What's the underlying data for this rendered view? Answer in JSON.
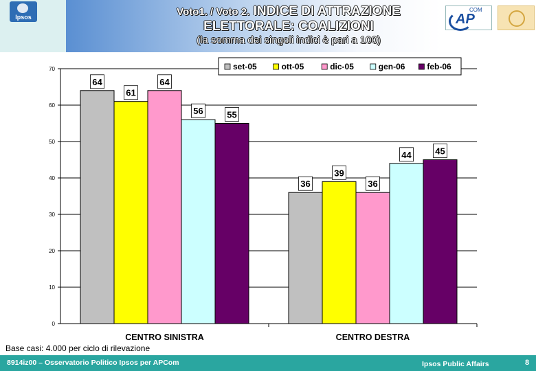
{
  "header": {
    "title_prefix": "Voto1. / Voto 2.",
    "title_main": "INDICE DI ATTRAZIONE",
    "title_line2": "ELETTORALE: COALIZIONI",
    "subtitle": "(la somma dei singoli indici è pari a 100)",
    "logo_left": "Ipsos",
    "logo_ap": "AP",
    "logo_ap_com": "COM"
  },
  "footer": {
    "left": "8914iz00 – Osservatorio Politico Ipsos per APCom",
    "right": "Ipsos Public Affairs",
    "page": "8"
  },
  "note": "Base casi: 4.000 per ciclo di rilevazione",
  "chart_data": {
    "type": "bar",
    "categories": [
      "CENTRO SINISTRA",
      "CENTRO DESTRA"
    ],
    "series": [
      {
        "name": "set-05",
        "color": "#c0c0c0",
        "values": [
          64,
          36
        ]
      },
      {
        "name": "ott-05",
        "color": "#ffff00",
        "values": [
          61,
          39
        ]
      },
      {
        "name": "dic-05",
        "color": "#ff99cc",
        "values": [
          64,
          36
        ]
      },
      {
        "name": "gen-06",
        "color": "#ccffff",
        "values": [
          56,
          44
        ]
      },
      {
        "name": "feb-06",
        "color": "#660066",
        "values": [
          55,
          45
        ]
      }
    ],
    "ylim": [
      0,
      70
    ],
    "yticks": [
      "0",
      "10",
      "20",
      "30",
      "40",
      "50",
      "60",
      "70"
    ],
    "grid": true,
    "legend_position": "top-right",
    "data_labels": true
  }
}
